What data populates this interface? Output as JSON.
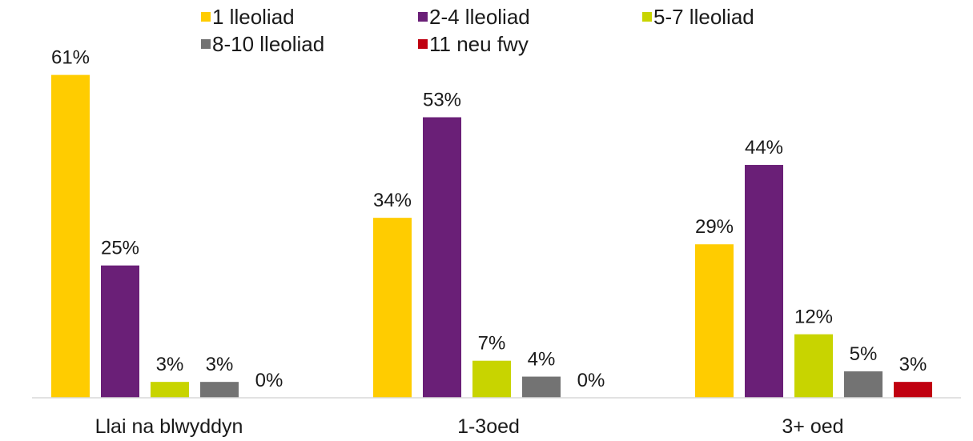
{
  "chart_data": {
    "type": "bar",
    "categories": [
      "Llai na blwyddyn",
      "1-3oed",
      "3+ oed"
    ],
    "series": [
      {
        "name": "1 lleoliad",
        "color": "#FFCC00",
        "values": [
          61,
          34,
          29
        ],
        "labels": [
          "61%",
          "34%",
          "29%"
        ]
      },
      {
        "name": "2-4 lleoliad",
        "color": "#6A1F77",
        "values": [
          25,
          53,
          44
        ],
        "labels": [
          "25%",
          "53%",
          "44%"
        ]
      },
      {
        "name": "5-7 lleoliad",
        "color": "#C8D400",
        "values": [
          3,
          7,
          12
        ],
        "labels": [
          "3%",
          "7%",
          "12%"
        ]
      },
      {
        "name": "8-10 lleoliad",
        "color": "#737373",
        "values": [
          3,
          4,
          5
        ],
        "labels": [
          "3%",
          "4%",
          "5%"
        ]
      },
      {
        "name": "11 neu fwy",
        "color": "#C00010",
        "values": [
          0,
          0,
          3
        ],
        "labels": [
          "0%",
          "0%",
          "3%"
        ]
      }
    ],
    "ylim": [
      0,
      62
    ],
    "grid": false,
    "legend_position": "top",
    "value_unit": "%",
    "axis_line_color": "#d9d9d9"
  }
}
